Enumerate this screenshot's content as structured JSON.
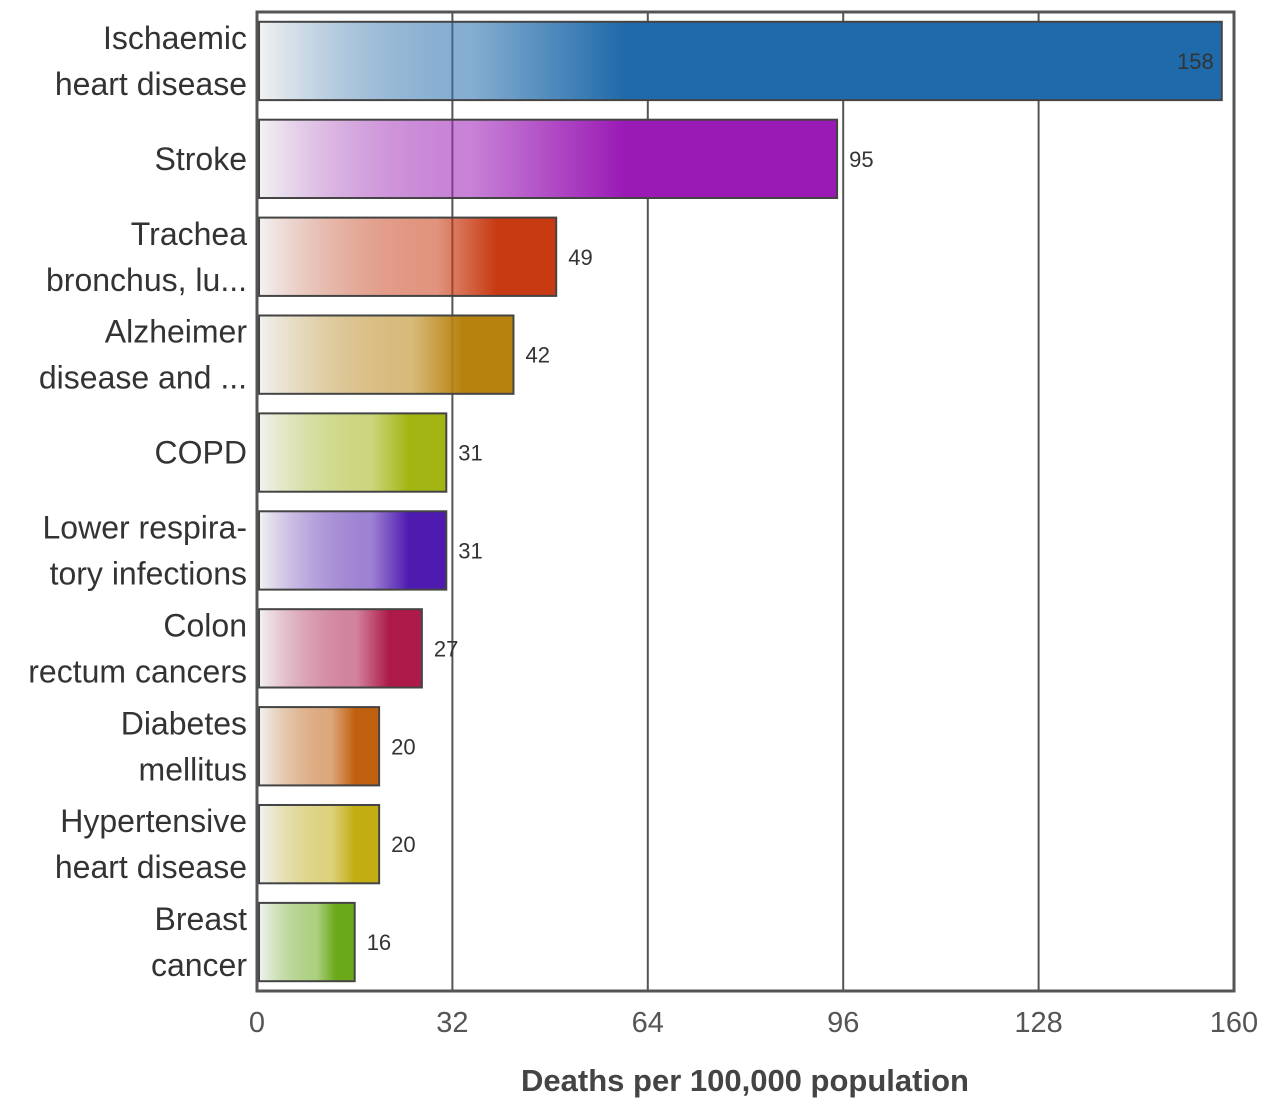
{
  "chart_data": {
    "type": "bar",
    "orientation": "horizontal",
    "categories": [
      [
        "Ischaemic",
        "heart disease"
      ],
      [
        "Stroke"
      ],
      [
        "Trachea",
        "bronchus, lu..."
      ],
      [
        "Alzheimer",
        "disease and ..."
      ],
      [
        "COPD"
      ],
      [
        "Lower respira-",
        "tory infections"
      ],
      [
        "Colon",
        "rectum cancers"
      ],
      [
        "Diabetes",
        "mellitus"
      ],
      [
        "Hypertensive",
        "heart disease"
      ],
      [
        "Breast",
        "cancer"
      ]
    ],
    "values": [
      158,
      95,
      49,
      42,
      31,
      31,
      27,
      20,
      20,
      16
    ],
    "value_labels": [
      "158",
      "95",
      "49",
      "42",
      "31",
      "31",
      "27",
      "20",
      "20",
      "16"
    ],
    "colors": [
      "#1f6aaa",
      "#9a1ab5",
      "#c83a12",
      "#b8820e",
      "#a2b512",
      "#4e1ab0",
      "#ad1a4a",
      "#c0600e",
      "#c2ad12",
      "#6aaa1a"
    ],
    "xlabel": "Deaths per 100,000 population",
    "ylabel": "",
    "xlim": [
      0,
      160
    ],
    "xticks": [
      0,
      32,
      64,
      96,
      128,
      160
    ],
    "grid": true
  }
}
